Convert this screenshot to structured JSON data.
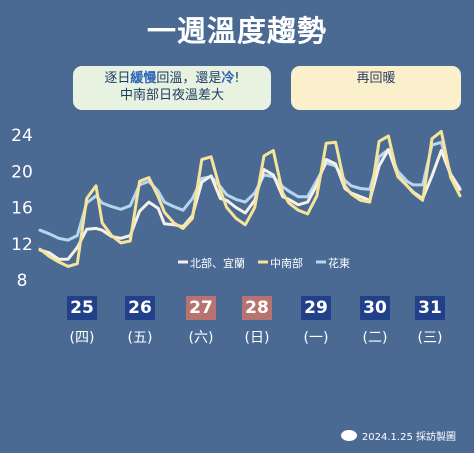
{
  "title": "一週溫度趨勢",
  "notes": {
    "left_line1_pre": "逐日",
    "left_line1_hl1": "緩慢",
    "left_line1_mid": "回溫，還是",
    "left_line1_hl2": "冷",
    "left_line1_post": "!",
    "left_line2": "中南部日夜溫差大",
    "right": "再回暖"
  },
  "days": [
    {
      "date": "25",
      "weekday": "(四)",
      "color": "#223f8a"
    },
    {
      "date": "26",
      "weekday": "(五)",
      "color": "#223f8a"
    },
    {
      "date": "27",
      "weekday": "(六)",
      "color": "#b77370"
    },
    {
      "date": "28",
      "weekday": "(日)",
      "color": "#b77370"
    },
    {
      "date": "29",
      "weekday": "(一)",
      "color": "#223f8a"
    },
    {
      "date": "30",
      "weekday": "(二)",
      "color": "#223f8a"
    },
    {
      "date": "31",
      "weekday": "(三)",
      "color": "#223f8a"
    }
  ],
  "footer": "2024.1.25 採訪製圖",
  "chart_data": {
    "type": "line",
    "ylim": [
      8,
      25
    ],
    "yticks": [
      8,
      12,
      16,
      20,
      24
    ],
    "x": [
      0,
      0.15,
      0.3,
      0.45,
      0.6,
      0.75,
      0.9,
      1,
      1.15,
      1.3,
      1.45,
      1.6,
      1.75,
      1.9,
      2,
      2.15,
      2.3,
      2.45,
      2.6,
      2.75,
      2.9,
      3,
      3.15,
      3.3,
      3.45,
      3.6,
      3.75,
      3.9,
      4,
      4.15,
      4.3,
      4.45,
      4.6,
      4.75,
      4.9,
      5,
      5.15,
      5.3,
      5.45,
      5.6,
      5.75,
      5.9,
      6,
      6.15,
      6.3,
      6.45,
      6.6,
      6.75
    ],
    "series": [
      {
        "name": "北部、宜蘭",
        "color": "#f4f1e8",
        "values": [
          11.3,
          11.0,
          10.3,
          10.3,
          11.6,
          13.6,
          13.7,
          13.5,
          12.8,
          12.6,
          12.9,
          15.6,
          16.6,
          15.9,
          14.2,
          14.1,
          13.9,
          15.1,
          18.8,
          19.5,
          17.0,
          16.8,
          16.0,
          15.4,
          16.8,
          20.2,
          19.6,
          17.2,
          16.9,
          16.3,
          16.6,
          18.5,
          21.3,
          20.8,
          18.1,
          17.6,
          17.2,
          16.8,
          20.6,
          22.4,
          19.5,
          18.4,
          17.7,
          17.0,
          19.5,
          22.3,
          19.6,
          18.0
        ]
      },
      {
        "name": "中南部",
        "color": "#f6e49a",
        "values": [
          11.4,
          10.6,
          10.0,
          9.5,
          9.8,
          17.0,
          18.4,
          14.3,
          12.9,
          12.1,
          12.3,
          18.9,
          19.3,
          17.2,
          15.5,
          14.3,
          13.7,
          14.8,
          21.3,
          21.6,
          17.9,
          16.0,
          14.8,
          14.1,
          16.0,
          21.7,
          22.3,
          17.6,
          16.5,
          15.7,
          15.3,
          17.3,
          23.1,
          23.2,
          18.4,
          17.5,
          16.8,
          16.6,
          23.3,
          23.9,
          19.4,
          18.4,
          17.6,
          16.8,
          23.6,
          24.4,
          19.3,
          17.3
        ]
      },
      {
        "name": "花東",
        "color": "#b6d6ef",
        "values": [
          13.5,
          13.1,
          12.6,
          12.4,
          12.9,
          16.5,
          17.3,
          16.5,
          16.1,
          15.8,
          16.2,
          18.5,
          18.9,
          17.8,
          16.6,
          16.1,
          15.7,
          17.0,
          19.2,
          19.4,
          18.3,
          17.4,
          16.9,
          16.6,
          17.6,
          19.6,
          19.4,
          18.3,
          17.8,
          17.2,
          17.2,
          19.0,
          20.9,
          20.6,
          19.0,
          18.4,
          18.1,
          18.0,
          21.6,
          22.4,
          20.0,
          18.9,
          18.5,
          18.5,
          22.9,
          23.2,
          19.7,
          18.1
        ]
      }
    ]
  }
}
